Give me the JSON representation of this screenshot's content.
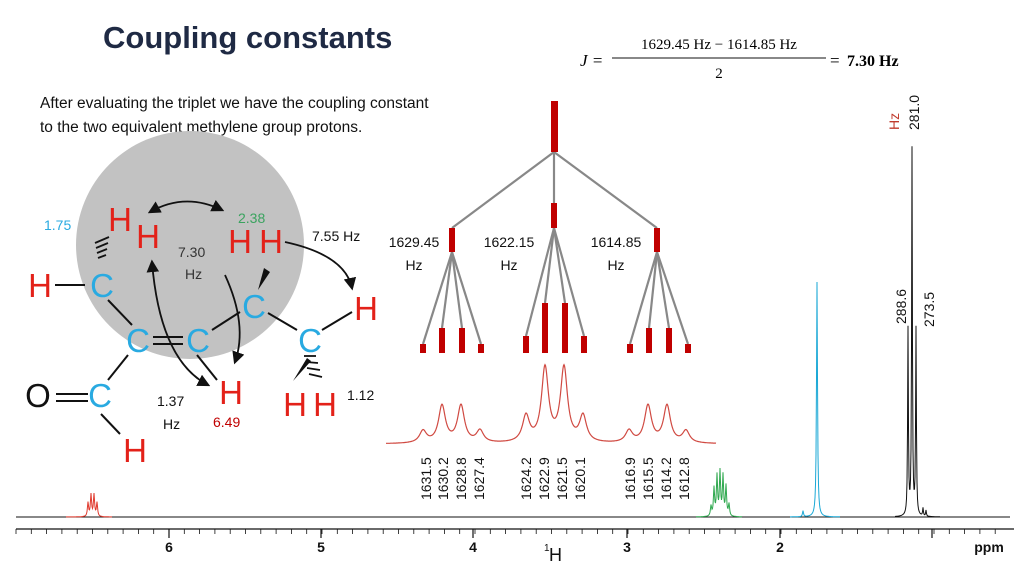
{
  "slide": {
    "title": "Coupling constants",
    "intro_line1": "After evaluating the triplet we have the coupling constant",
    "intro_line2": "to the two equivalent methylene group protons."
  },
  "formula": {
    "lhs": "J =",
    "numerator": "1629.45 Hz − 1614.85 Hz",
    "denominator": "2",
    "equals": "=",
    "result": "7.30 Hz"
  },
  "colors": {
    "carbon": "#29aae1",
    "hydrogen": "#e32119",
    "oxygen": "#111111",
    "shift_cyan": "#29aae1",
    "shift_green": "#3aa35f",
    "shift_red": "#c00000",
    "tree": "#c00000",
    "spectrum_black": "#111111"
  },
  "molecule": {
    "atoms": {
      "c1": "C",
      "c2": "C",
      "c3": "C",
      "c4": "C",
      "c5": "C",
      "c6": "C",
      "o1": "O",
      "h_a": "H",
      "h_b": "H",
      "h_left": "H",
      "h_c": "H",
      "h_d": "H",
      "h_right": "H",
      "h_e": "H",
      "h_f": "H",
      "h_vinyl": "H",
      "h_ald": "H"
    },
    "labels": {
      "shift_175": "1.75",
      "shift_238": "2.38",
      "j_730": "7.30",
      "j_730_unit": "Hz",
      "j_755": "7.55 Hz",
      "shift_112": "1.12",
      "j_137": "1.37",
      "j_137_unit": "Hz",
      "shift_649": "6.49"
    }
  },
  "tree": {
    "labels": [
      {
        "value": "1629.45",
        "unit": "Hz"
      },
      {
        "value": "1622.15",
        "unit": "Hz"
      },
      {
        "value": "1614.85",
        "unit": "Hz"
      }
    ],
    "peak_labels": [
      "1631.5",
      "1630.2",
      "1628.8",
      "1627.4",
      "1624.2",
      "1622.9",
      "1621.5",
      "1620.1",
      "1616.9",
      "1615.5",
      "1614.2",
      "1612.8"
    ]
  },
  "spectrum": {
    "peak_labels": {
      "p281": "281.0",
      "p281_unit": "Hz",
      "p2886": "288.6",
      "p2735": "273.5"
    },
    "x_axis": {
      "ticks": [
        "6",
        "5",
        "4",
        "3",
        "2"
      ],
      "nucleus_sup": "1",
      "nucleus": "H",
      "unit": "ppm"
    }
  }
}
